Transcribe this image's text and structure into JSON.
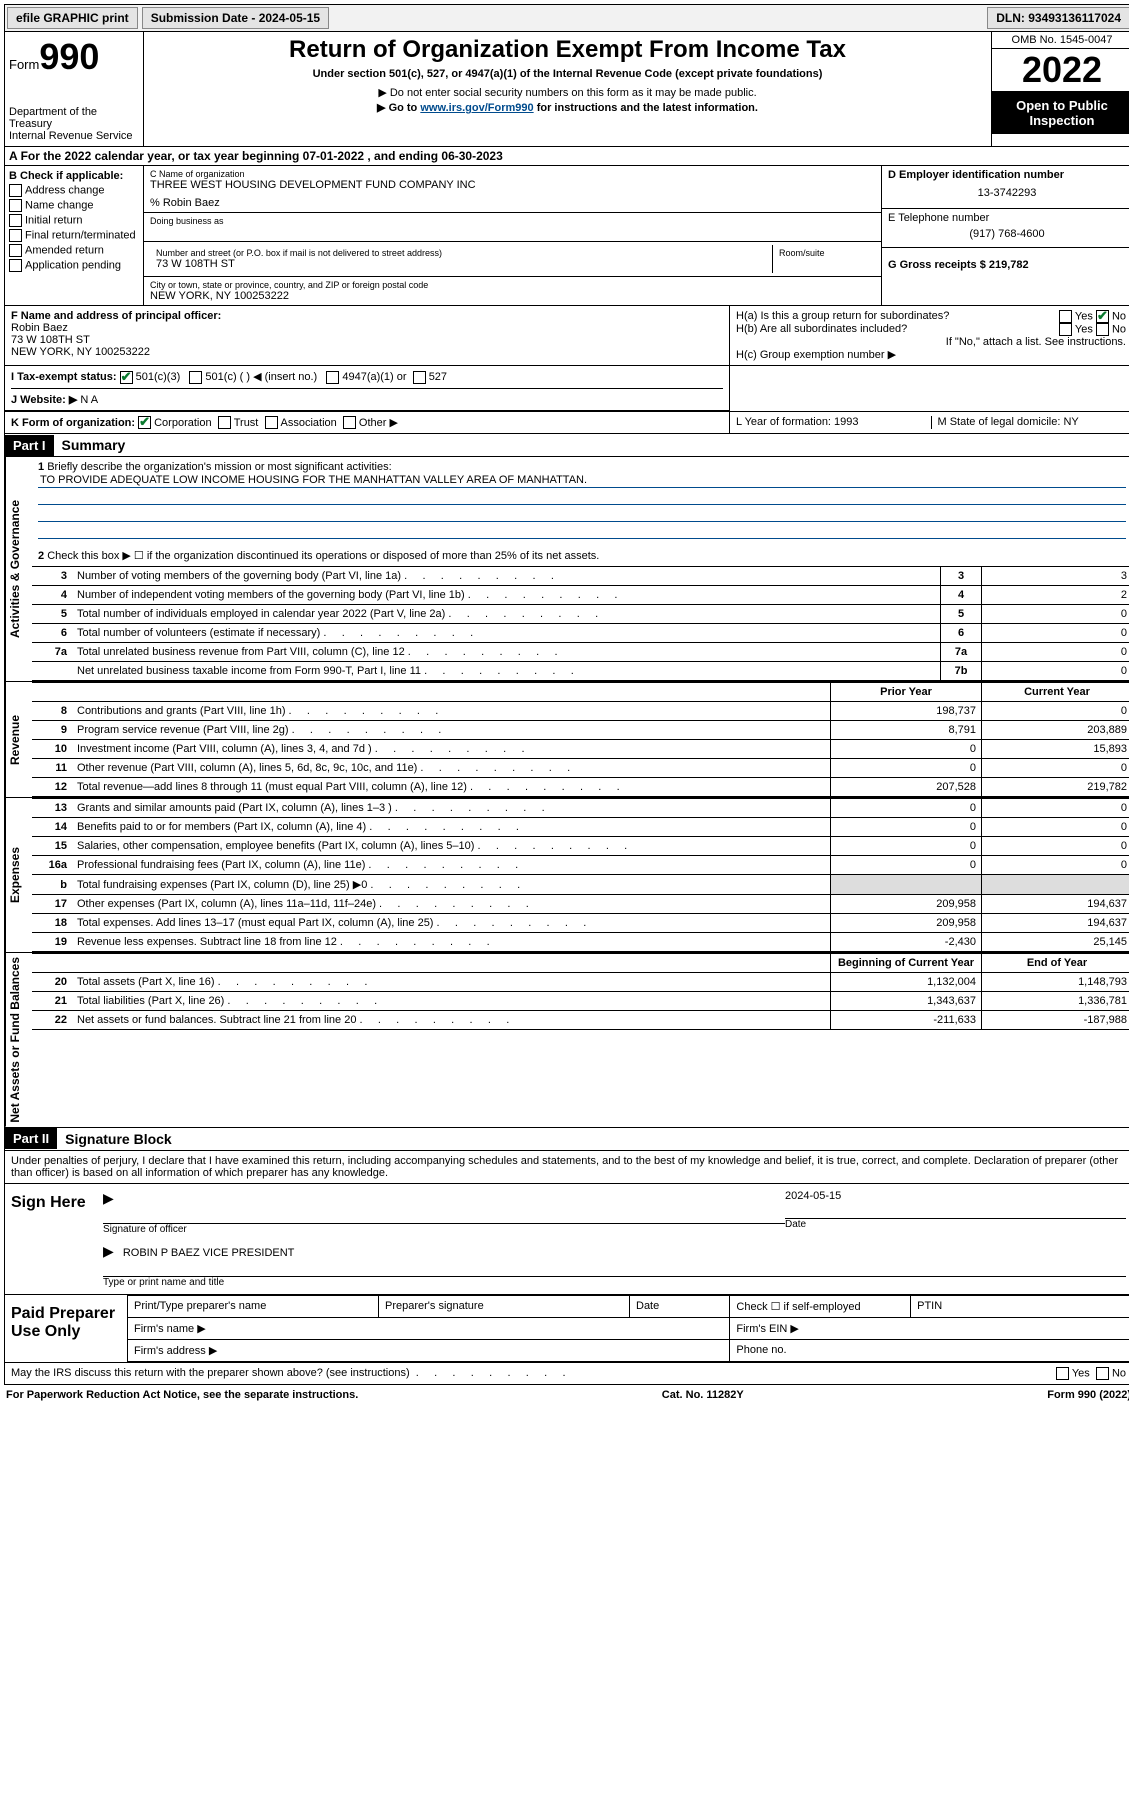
{
  "topbar": {
    "efile": "efile GRAPHIC print",
    "submission_label": "Submission Date - 2024-05-15",
    "dln_label": "DLN: 93493136117024"
  },
  "header": {
    "form_label": "Form",
    "form_number": "990",
    "dept": "Department of the Treasury",
    "irs": "Internal Revenue Service",
    "title": "Return of Organization Exempt From Income Tax",
    "subtitle": "Under section 501(c), 527, or 4947(a)(1) of the Internal Revenue Code (except private foundations)",
    "note1": "▶ Do not enter social security numbers on this form as it may be made public.",
    "note2_pre": "▶ Go to ",
    "note2_link": "www.irs.gov/Form990",
    "note2_post": " for instructions and the latest information.",
    "omb": "OMB No. 1545-0047",
    "year": "2022",
    "open": "Open to Public Inspection"
  },
  "line_a": "For the 2022 calendar year, or tax year beginning 07-01-2022   , and ending 06-30-2023",
  "section_b": {
    "title": "B Check if applicable:",
    "items": [
      "Address change",
      "Name change",
      "Initial return",
      "Final return/terminated",
      "Amended return",
      "Application pending"
    ]
  },
  "section_c": {
    "name_label": "C Name of organization",
    "name": "THREE WEST HOUSING DEVELOPMENT FUND COMPANY INC",
    "care_of": "% Robin Baez",
    "dba_label": "Doing business as",
    "street_label": "Number and street (or P.O. box if mail is not delivered to street address)",
    "room_label": "Room/suite",
    "street": "73 W 108TH ST",
    "city_label": "City or town, state or province, country, and ZIP or foreign postal code",
    "city": "NEW YORK, NY  100253222"
  },
  "section_d": {
    "label": "D Employer identification number",
    "ein": "13-3742293"
  },
  "section_e": {
    "label": "E Telephone number",
    "phone": "(917) 768-4600"
  },
  "section_g": {
    "label": "G Gross receipts $ 219,782"
  },
  "section_f": {
    "label": "F Name and address of principal officer:",
    "name": "Robin Baez",
    "addr1": "73 W 108TH ST",
    "addr2": "NEW YORK, NY  100253222"
  },
  "section_h": {
    "a": "H(a)  Is this a group return for subordinates?",
    "b": "H(b)  Are all subordinates included?",
    "note": "If \"No,\" attach a list. See instructions.",
    "c": "H(c)  Group exemption number ▶",
    "yes": "Yes",
    "no": "No"
  },
  "section_i": {
    "label": "I   Tax-exempt status:",
    "o1": "501(c)(3)",
    "o2": "501(c) (  ) ◀ (insert no.)",
    "o3": "4947(a)(1) or",
    "o4": "527"
  },
  "section_j": {
    "label": "J   Website: ▶",
    "val": " N A"
  },
  "section_k": {
    "label": "K Form of organization:",
    "o1": "Corporation",
    "o2": "Trust",
    "o3": "Association",
    "o4": "Other ▶"
  },
  "section_l": {
    "label": "L Year of formation: 1993"
  },
  "section_m": {
    "label": "M State of legal domicile: NY"
  },
  "part1": {
    "header": "Part I",
    "title": "Summary",
    "l1": "Briefly describe the organization's mission or most significant activities:",
    "mission": "TO PROVIDE ADEQUATE LOW INCOME HOUSING FOR THE MANHATTAN VALLEY AREA OF MANHATTAN.",
    "l2": "Check this box ▶ ☐  if the organization discontinued its operations or disposed of more than 25% of its net assets.",
    "vtab1": "Activities & Governance",
    "vtab2": "Revenue",
    "vtab3": "Expenses",
    "vtab4": "Net Assets or Fund Balances",
    "rows_gov": [
      {
        "n": "3",
        "d": "Number of voting members of the governing body (Part VI, line 1a)",
        "b": "3",
        "v": "3"
      },
      {
        "n": "4",
        "d": "Number of independent voting members of the governing body (Part VI, line 1b)",
        "b": "4",
        "v": "2"
      },
      {
        "n": "5",
        "d": "Total number of individuals employed in calendar year 2022 (Part V, line 2a)",
        "b": "5",
        "v": "0"
      },
      {
        "n": "6",
        "d": "Total number of volunteers (estimate if necessary)",
        "b": "6",
        "v": "0"
      },
      {
        "n": "7a",
        "d": "Total unrelated business revenue from Part VIII, column (C), line 12",
        "b": "7a",
        "v": "0"
      },
      {
        "n": "",
        "d": "Net unrelated business taxable income from Form 990-T, Part I, line 11",
        "b": "7b",
        "v": "0"
      }
    ],
    "hdr_prior": "Prior Year",
    "hdr_curr": "Current Year",
    "rows_rev": [
      {
        "n": "8",
        "d": "Contributions and grants (Part VIII, line 1h)",
        "p": "198,737",
        "c": "0"
      },
      {
        "n": "9",
        "d": "Program service revenue (Part VIII, line 2g)",
        "p": "8,791",
        "c": "203,889"
      },
      {
        "n": "10",
        "d": "Investment income (Part VIII, column (A), lines 3, 4, and 7d )",
        "p": "0",
        "c": "15,893"
      },
      {
        "n": "11",
        "d": "Other revenue (Part VIII, column (A), lines 5, 6d, 8c, 9c, 10c, and 11e)",
        "p": "0",
        "c": "0"
      },
      {
        "n": "12",
        "d": "Total revenue—add lines 8 through 11 (must equal Part VIII, column (A), line 12)",
        "p": "207,528",
        "c": "219,782"
      }
    ],
    "rows_exp": [
      {
        "n": "13",
        "d": "Grants and similar amounts paid (Part IX, column (A), lines 1–3 )",
        "p": "0",
        "c": "0"
      },
      {
        "n": "14",
        "d": "Benefits paid to or for members (Part IX, column (A), line 4)",
        "p": "0",
        "c": "0"
      },
      {
        "n": "15",
        "d": "Salaries, other compensation, employee benefits (Part IX, column (A), lines 5–10)",
        "p": "0",
        "c": "0"
      },
      {
        "n": "16a",
        "d": "Professional fundraising fees (Part IX, column (A), line 11e)",
        "p": "0",
        "c": "0"
      },
      {
        "n": "b",
        "d": "Total fundraising expenses (Part IX, column (D), line 25) ▶0",
        "p": "",
        "c": "",
        "shade": true
      },
      {
        "n": "17",
        "d": "Other expenses (Part IX, column (A), lines 11a–11d, 11f–24e)",
        "p": "209,958",
        "c": "194,637"
      },
      {
        "n": "18",
        "d": "Total expenses. Add lines 13–17 (must equal Part IX, column (A), line 25)",
        "p": "209,958",
        "c": "194,637"
      },
      {
        "n": "19",
        "d": "Revenue less expenses. Subtract line 18 from line 12",
        "p": "-2,430",
        "c": "25,145"
      }
    ],
    "hdr_beg": "Beginning of Current Year",
    "hdr_end": "End of Year",
    "rows_net": [
      {
        "n": "20",
        "d": "Total assets (Part X, line 16)",
        "p": "1,132,004",
        "c": "1,148,793"
      },
      {
        "n": "21",
        "d": "Total liabilities (Part X, line 26)",
        "p": "1,343,637",
        "c": "1,336,781"
      },
      {
        "n": "22",
        "d": "Net assets or fund balances. Subtract line 21 from line 20",
        "p": "-211,633",
        "c": "-187,988"
      }
    ]
  },
  "part2": {
    "header": "Part II",
    "title": "Signature Block",
    "decl": "Under penalties of perjury, I declare that I have examined this return, including accompanying schedules and statements, and to the best of my knowledge and belief, it is true, correct, and complete. Declaration of preparer (other than officer) is based on all information of which preparer has any knowledge.",
    "sign_here": "Sign Here",
    "sig_off": "Signature of officer",
    "sig_date": "Date",
    "sig_date_val": "2024-05-15",
    "name_title": "ROBIN P BAEZ  VICE PRESIDENT",
    "name_title_lbl": "Type or print name and title",
    "paid": "Paid Preparer Use Only",
    "prep_name": "Print/Type preparer's name",
    "prep_sig": "Preparer's signature",
    "prep_date": "Date",
    "prep_check": "Check ☐ if self-employed",
    "ptin": "PTIN",
    "firm_name": "Firm's name   ▶",
    "firm_ein": "Firm's EIN ▶",
    "firm_addr": "Firm's address ▶",
    "phone": "Phone no.",
    "discuss": "May the IRS discuss this return with the preparer shown above? (see instructions)"
  },
  "footer": {
    "left": "For Paperwork Reduction Act Notice, see the separate instructions.",
    "mid": "Cat. No. 11282Y",
    "right": "Form 990 (2022)"
  }
}
